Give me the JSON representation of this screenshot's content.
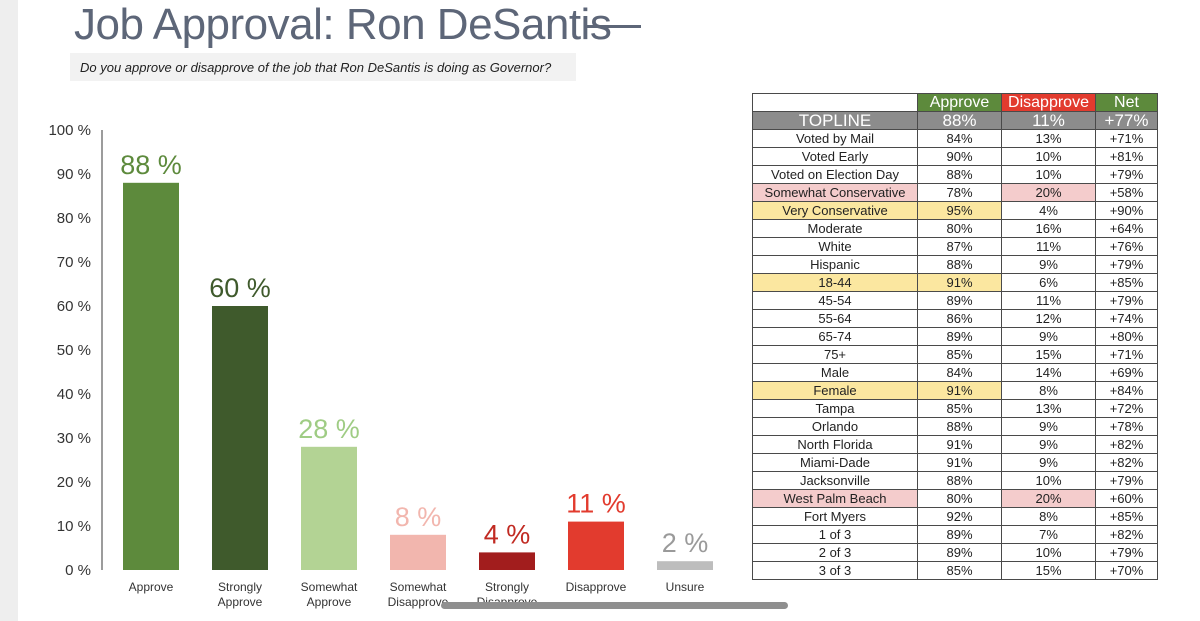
{
  "header": {
    "title": "Job Approval: Ron DeSantis",
    "subtitle": "Do you approve or disapprove of the job that Ron DeSantis is doing as Governor?"
  },
  "chart_data": {
    "type": "bar",
    "categories": [
      [
        "Approve"
      ],
      [
        "Strongly",
        "Approve"
      ],
      [
        "Somewhat",
        "Approve"
      ],
      [
        "Somewhat",
        "Disapprove"
      ],
      [
        "Strongly",
        "Disapprove"
      ],
      [
        "Disapprove"
      ],
      [
        "Unsure"
      ]
    ],
    "values": [
      88,
      60,
      28,
      8,
      4,
      11,
      2
    ],
    "value_labels": [
      "88 %",
      "60 %",
      "28 %",
      "8 %",
      "4 %",
      "11 %",
      "2 %"
    ],
    "bar_colors": [
      "#5d8a3c",
      "#3f5a2c",
      "#b3d394",
      "#f2b6ae",
      "#a21d1d",
      "#e23b2e",
      "#bdbdbd"
    ],
    "label_colors": [
      "#5d8a3c",
      "#3f5a2c",
      "#9fcc84",
      "#f2b6ae",
      "#c12a22",
      "#e23b2e",
      "#9a9a9a"
    ],
    "y_ticks": [
      "100 %",
      "90 %",
      "80 %",
      "70 %",
      "60 %",
      "50 %",
      "40 %",
      "30 %",
      "20 %",
      "10 %",
      "0 %"
    ],
    "ylim": [
      0,
      100
    ],
    "grid": false
  },
  "table": {
    "headers": [
      "",
      "Approve",
      "Disapprove",
      "Net"
    ],
    "topline": [
      "TOPLINE",
      "88%",
      "11%",
      "+77%"
    ],
    "rows": [
      {
        "label": "Voted by Mail",
        "approve": "84%",
        "disapprove": "13%",
        "net": "+71%",
        "hl": ""
      },
      {
        "label": "Voted Early",
        "approve": "90%",
        "disapprove": "10%",
        "net": "+81%",
        "hl": ""
      },
      {
        "label": "Voted on Election Day",
        "approve": "88%",
        "disapprove": "10%",
        "net": "+79%",
        "hl": ""
      },
      {
        "label": "Somewhat Conservative",
        "approve": "78%",
        "disapprove": "20%",
        "net": "+58%",
        "hl": "pink"
      },
      {
        "label": "Very Conservative",
        "approve": "95%",
        "disapprove": "4%",
        "net": "+90%",
        "hl": "yellow"
      },
      {
        "label": "Moderate",
        "approve": "80%",
        "disapprove": "16%",
        "net": "+64%",
        "hl": ""
      },
      {
        "label": "White",
        "approve": "87%",
        "disapprove": "11%",
        "net": "+76%",
        "hl": ""
      },
      {
        "label": "Hispanic",
        "approve": "88%",
        "disapprove": "9%",
        "net": "+79%",
        "hl": ""
      },
      {
        "label": "18-44",
        "approve": "91%",
        "disapprove": "6%",
        "net": "+85%",
        "hl": "yellow"
      },
      {
        "label": "45-54",
        "approve": "89%",
        "disapprove": "11%",
        "net": "+79%",
        "hl": ""
      },
      {
        "label": "55-64",
        "approve": "86%",
        "disapprove": "12%",
        "net": "+74%",
        "hl": ""
      },
      {
        "label": "65-74",
        "approve": "89%",
        "disapprove": "9%",
        "net": "+80%",
        "hl": ""
      },
      {
        "label": "75+",
        "approve": "85%",
        "disapprove": "15%",
        "net": "+71%",
        "hl": ""
      },
      {
        "label": "Male",
        "approve": "84%",
        "disapprove": "14%",
        "net": "+69%",
        "hl": ""
      },
      {
        "label": "Female",
        "approve": "91%",
        "disapprove": "8%",
        "net": "+84%",
        "hl": "yellow"
      },
      {
        "label": "Tampa",
        "approve": "85%",
        "disapprove": "13%",
        "net": "+72%",
        "hl": ""
      },
      {
        "label": "Orlando",
        "approve": "88%",
        "disapprove": "9%",
        "net": "+78%",
        "hl": ""
      },
      {
        "label": "North Florida",
        "approve": "91%",
        "disapprove": "9%",
        "net": "+82%",
        "hl": ""
      },
      {
        "label": "Miami-Dade",
        "approve": "91%",
        "disapprove": "9%",
        "net": "+82%",
        "hl": ""
      },
      {
        "label": "Jacksonville",
        "approve": "88%",
        "disapprove": "10%",
        "net": "+79%",
        "hl": ""
      },
      {
        "label": "West Palm Beach",
        "approve": "80%",
        "disapprove": "20%",
        "net": "+60%",
        "hl": "pink"
      },
      {
        "label": "Fort Myers",
        "approve": "92%",
        "disapprove": "8%",
        "net": "+85%",
        "hl": ""
      },
      {
        "label": "1 of 3",
        "approve": "89%",
        "disapprove": "7%",
        "net": "+82%",
        "hl": ""
      },
      {
        "label": "2 of 3",
        "approve": "89%",
        "disapprove": "10%",
        "net": "+79%",
        "hl": ""
      },
      {
        "label": "3 of 3",
        "approve": "85%",
        "disapprove": "15%",
        "net": "+70%",
        "hl": ""
      }
    ]
  }
}
